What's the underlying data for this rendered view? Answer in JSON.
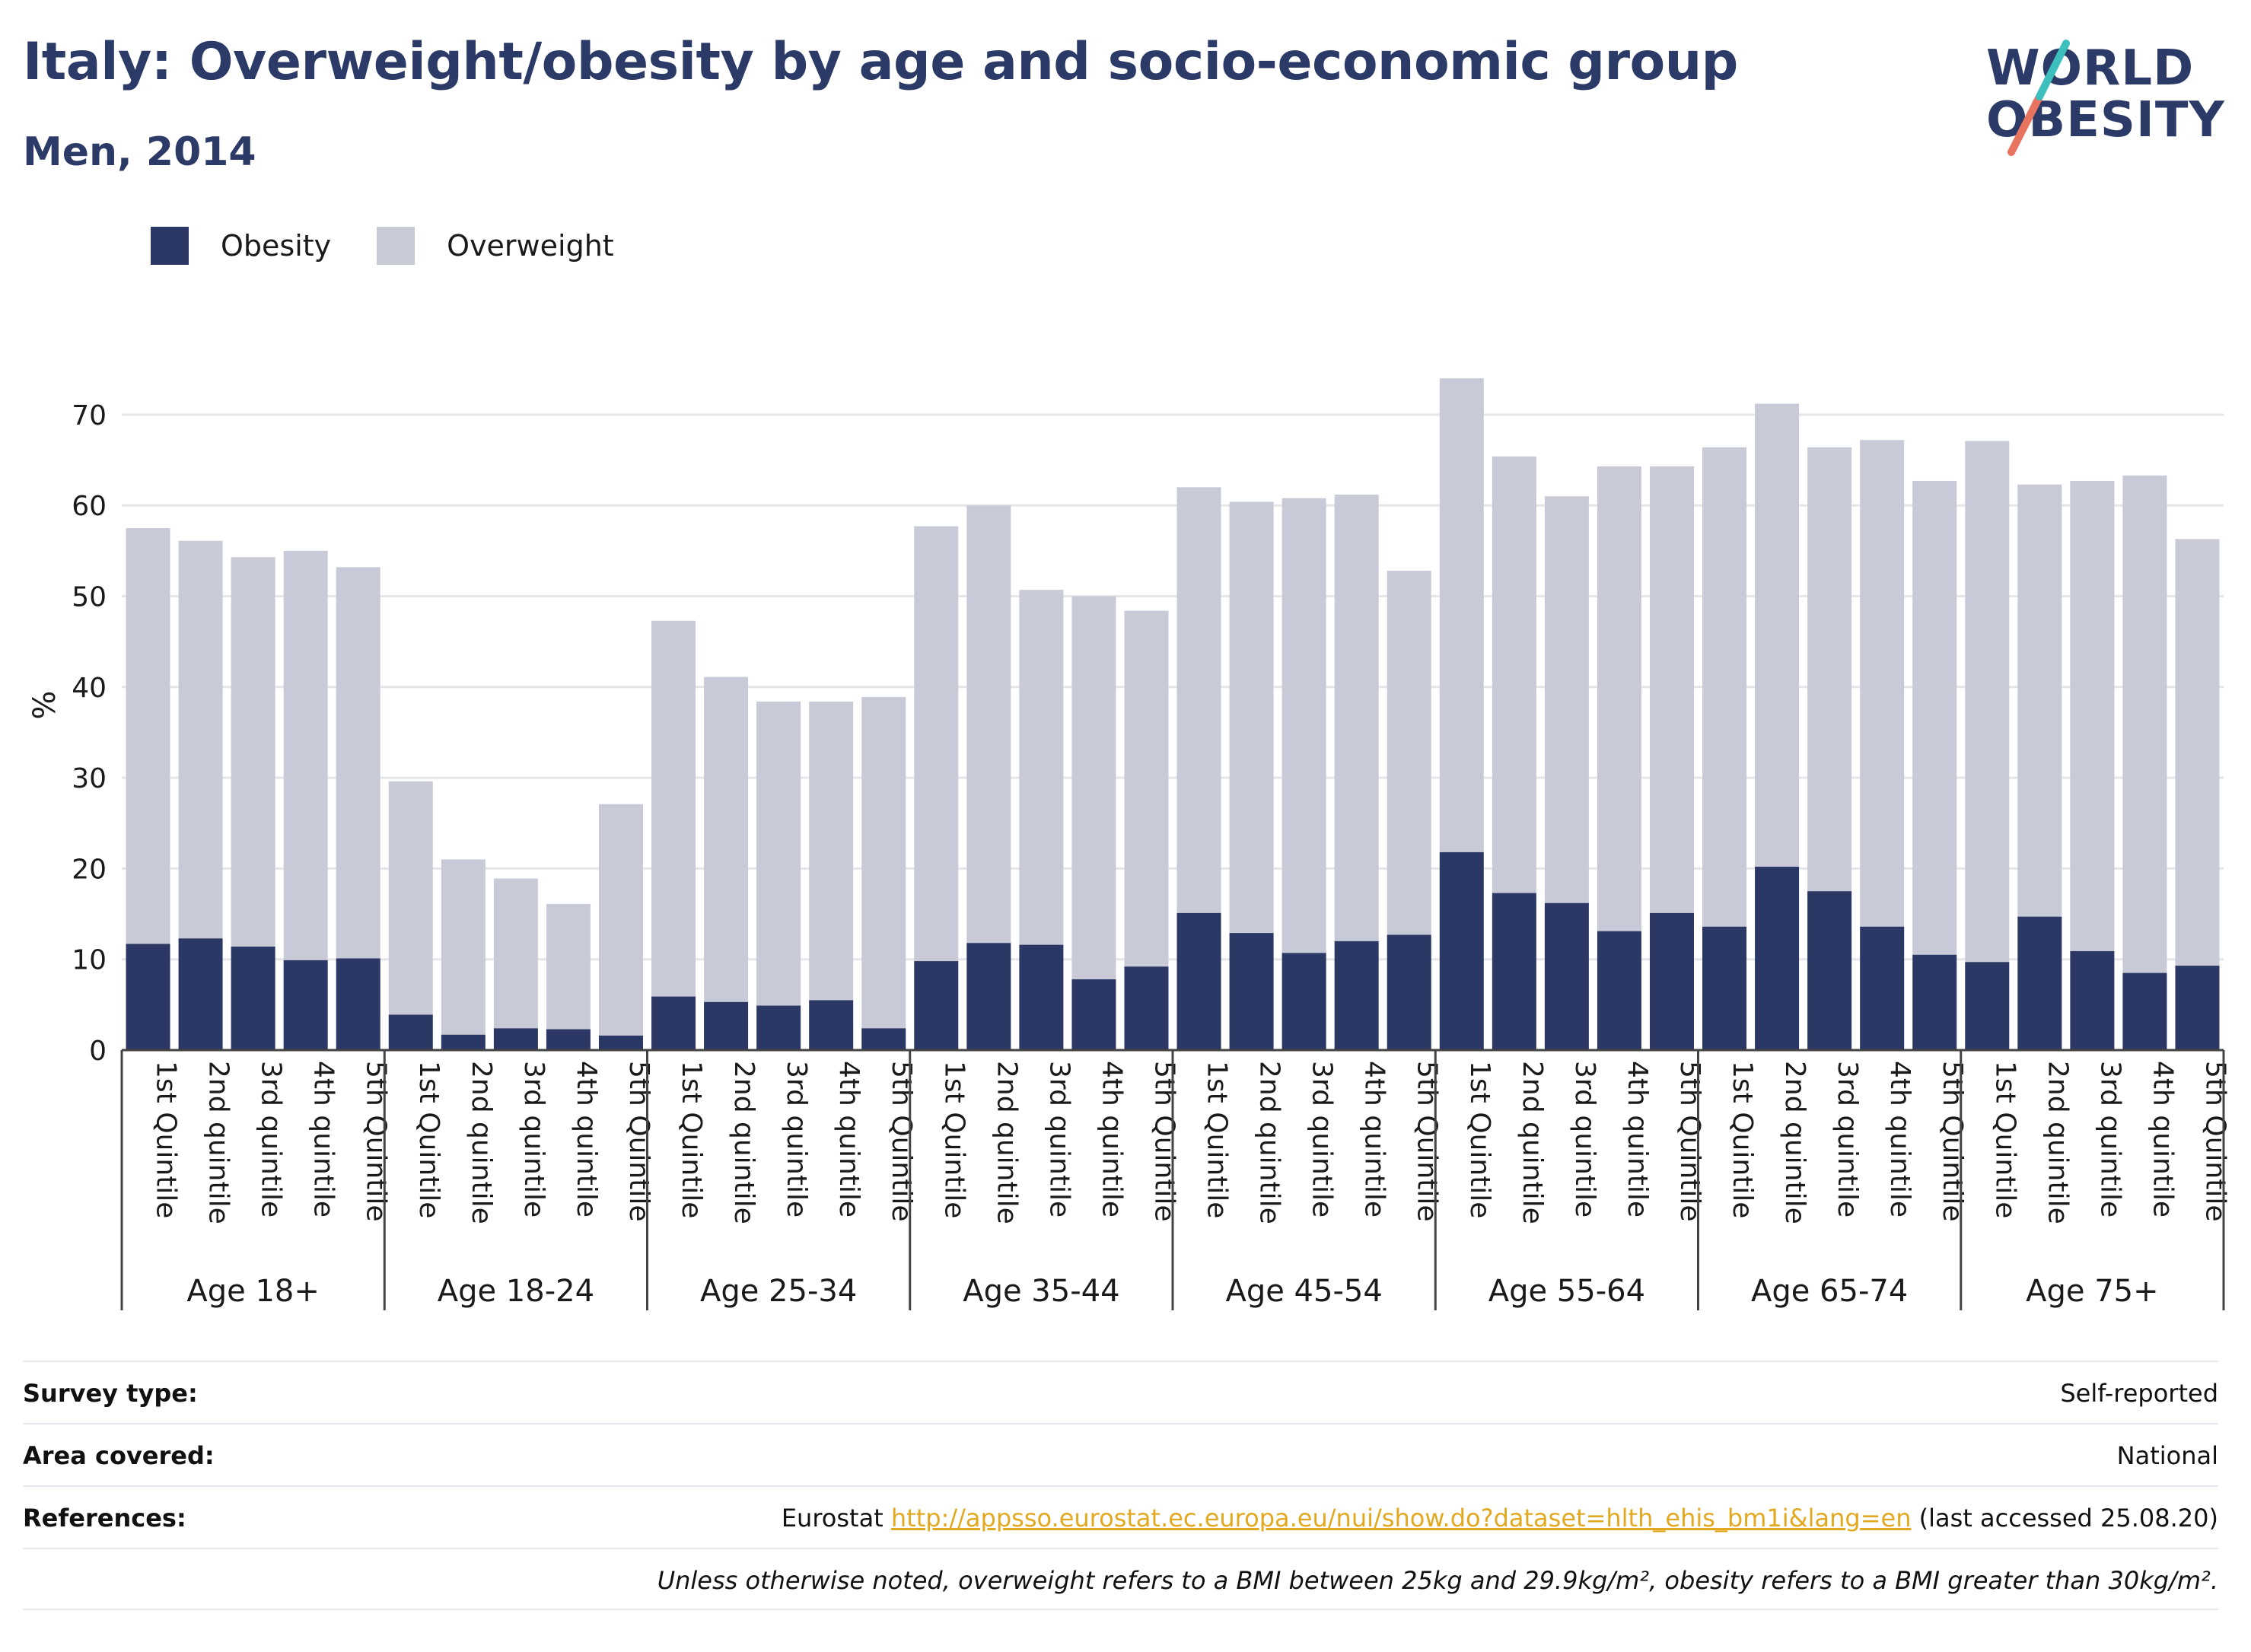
{
  "title": "Italy: Overweight/obesity by age and socio-economic group",
  "subtitle": "Men, 2014",
  "logo": {
    "line1": "WORLD",
    "line2": "OBESITY"
  },
  "legend": [
    {
      "label": "Obesity",
      "color": "#2b3764"
    },
    {
      "label": "Overweight",
      "color": "#c8cad7"
    }
  ],
  "chart_data": {
    "type": "bar",
    "stacked": true,
    "ylabel": "%",
    "ylim": [
      0,
      77
    ],
    "yticks": [
      0,
      10,
      20,
      30,
      40,
      50,
      60,
      70
    ],
    "grid": true,
    "legend_position": "top-left",
    "groups": [
      {
        "label": "Age 18+",
        "categories": [
          "1st Quintile",
          "2nd quintile",
          "3rd quintile",
          "4th quintile",
          "5th Quintile"
        ],
        "obesity": [
          11.7,
          12.3,
          11.4,
          9.9,
          10.1
        ],
        "total": [
          57.5,
          56.1,
          54.3,
          55.0,
          53.2
        ]
      },
      {
        "label": "Age 18-24",
        "categories": [
          "1st Quintile",
          "2nd quintile",
          "3rd quintile",
          "4th quintile",
          "5th Quintile"
        ],
        "obesity": [
          3.9,
          1.7,
          2.4,
          2.3,
          1.6
        ],
        "total": [
          29.6,
          21.0,
          18.9,
          16.1,
          27.1
        ]
      },
      {
        "label": "Age 25-34",
        "categories": [
          "1st Quintile",
          "2nd quintile",
          "3rd quintile",
          "4th quintile",
          "5th Quintile"
        ],
        "obesity": [
          5.9,
          5.3,
          4.9,
          5.5,
          2.4
        ],
        "total": [
          47.3,
          41.1,
          38.4,
          38.4,
          38.9
        ]
      },
      {
        "label": "Age 35-44",
        "categories": [
          "1st Quintile",
          "2nd quintile",
          "3rd quintile",
          "4th quintile",
          "5th Quintile"
        ],
        "obesity": [
          9.8,
          11.8,
          11.6,
          7.8,
          9.2
        ],
        "total": [
          57.7,
          60.0,
          50.7,
          50.0,
          48.4
        ]
      },
      {
        "label": "Age 45-54",
        "categories": [
          "1st Quintile",
          "2nd quintile",
          "3rd quintile",
          "4th quintile",
          "5th Quintile"
        ],
        "obesity": [
          15.1,
          12.9,
          10.7,
          12.0,
          12.7
        ],
        "total": [
          62.0,
          60.4,
          60.8,
          61.2,
          52.8
        ]
      },
      {
        "label": "Age 55-64",
        "categories": [
          "1st Quintile",
          "2nd quintile",
          "3rd quintile",
          "4th quintile",
          "5th Quintile"
        ],
        "obesity": [
          21.8,
          17.3,
          16.2,
          13.1,
          15.1
        ],
        "total": [
          74.0,
          65.4,
          61.0,
          64.3,
          64.3
        ]
      },
      {
        "label": "Age 65-74",
        "categories": [
          "1st Quintile",
          "2nd quintile",
          "3rd quintile",
          "4th quintile",
          "5th Quintile"
        ],
        "obesity": [
          13.6,
          20.2,
          17.5,
          13.6,
          10.5
        ],
        "total": [
          66.4,
          71.2,
          66.4,
          67.2,
          62.7
        ]
      },
      {
        "label": "Age 75+",
        "categories": [
          "1st Quintile",
          "2nd quintile",
          "3rd quintile",
          "4th quintile",
          "5th Quintile"
        ],
        "obesity": [
          9.7,
          14.7,
          10.9,
          8.5,
          9.3
        ],
        "total": [
          67.1,
          62.3,
          62.7,
          63.3,
          56.3
        ]
      }
    ]
  },
  "footer": {
    "survey_type_label": "Survey type:",
    "survey_type_value": "Self-reported",
    "area_label": "Area covered:",
    "area_value": "National",
    "references_label": "References:",
    "references_prefix": "Eurostat ",
    "references_link": "http://appsso.eurostat.ec.europa.eu/nui/show.do?dataset=hlth_ehis_bm1i&lang=en",
    "references_suffix": " (last accessed 25.08.20)",
    "note": "Unless otherwise noted, overweight refers to a BMI between 25kg and 29.9kg/m², obesity refers to a BMI greater than 30kg/m²."
  }
}
